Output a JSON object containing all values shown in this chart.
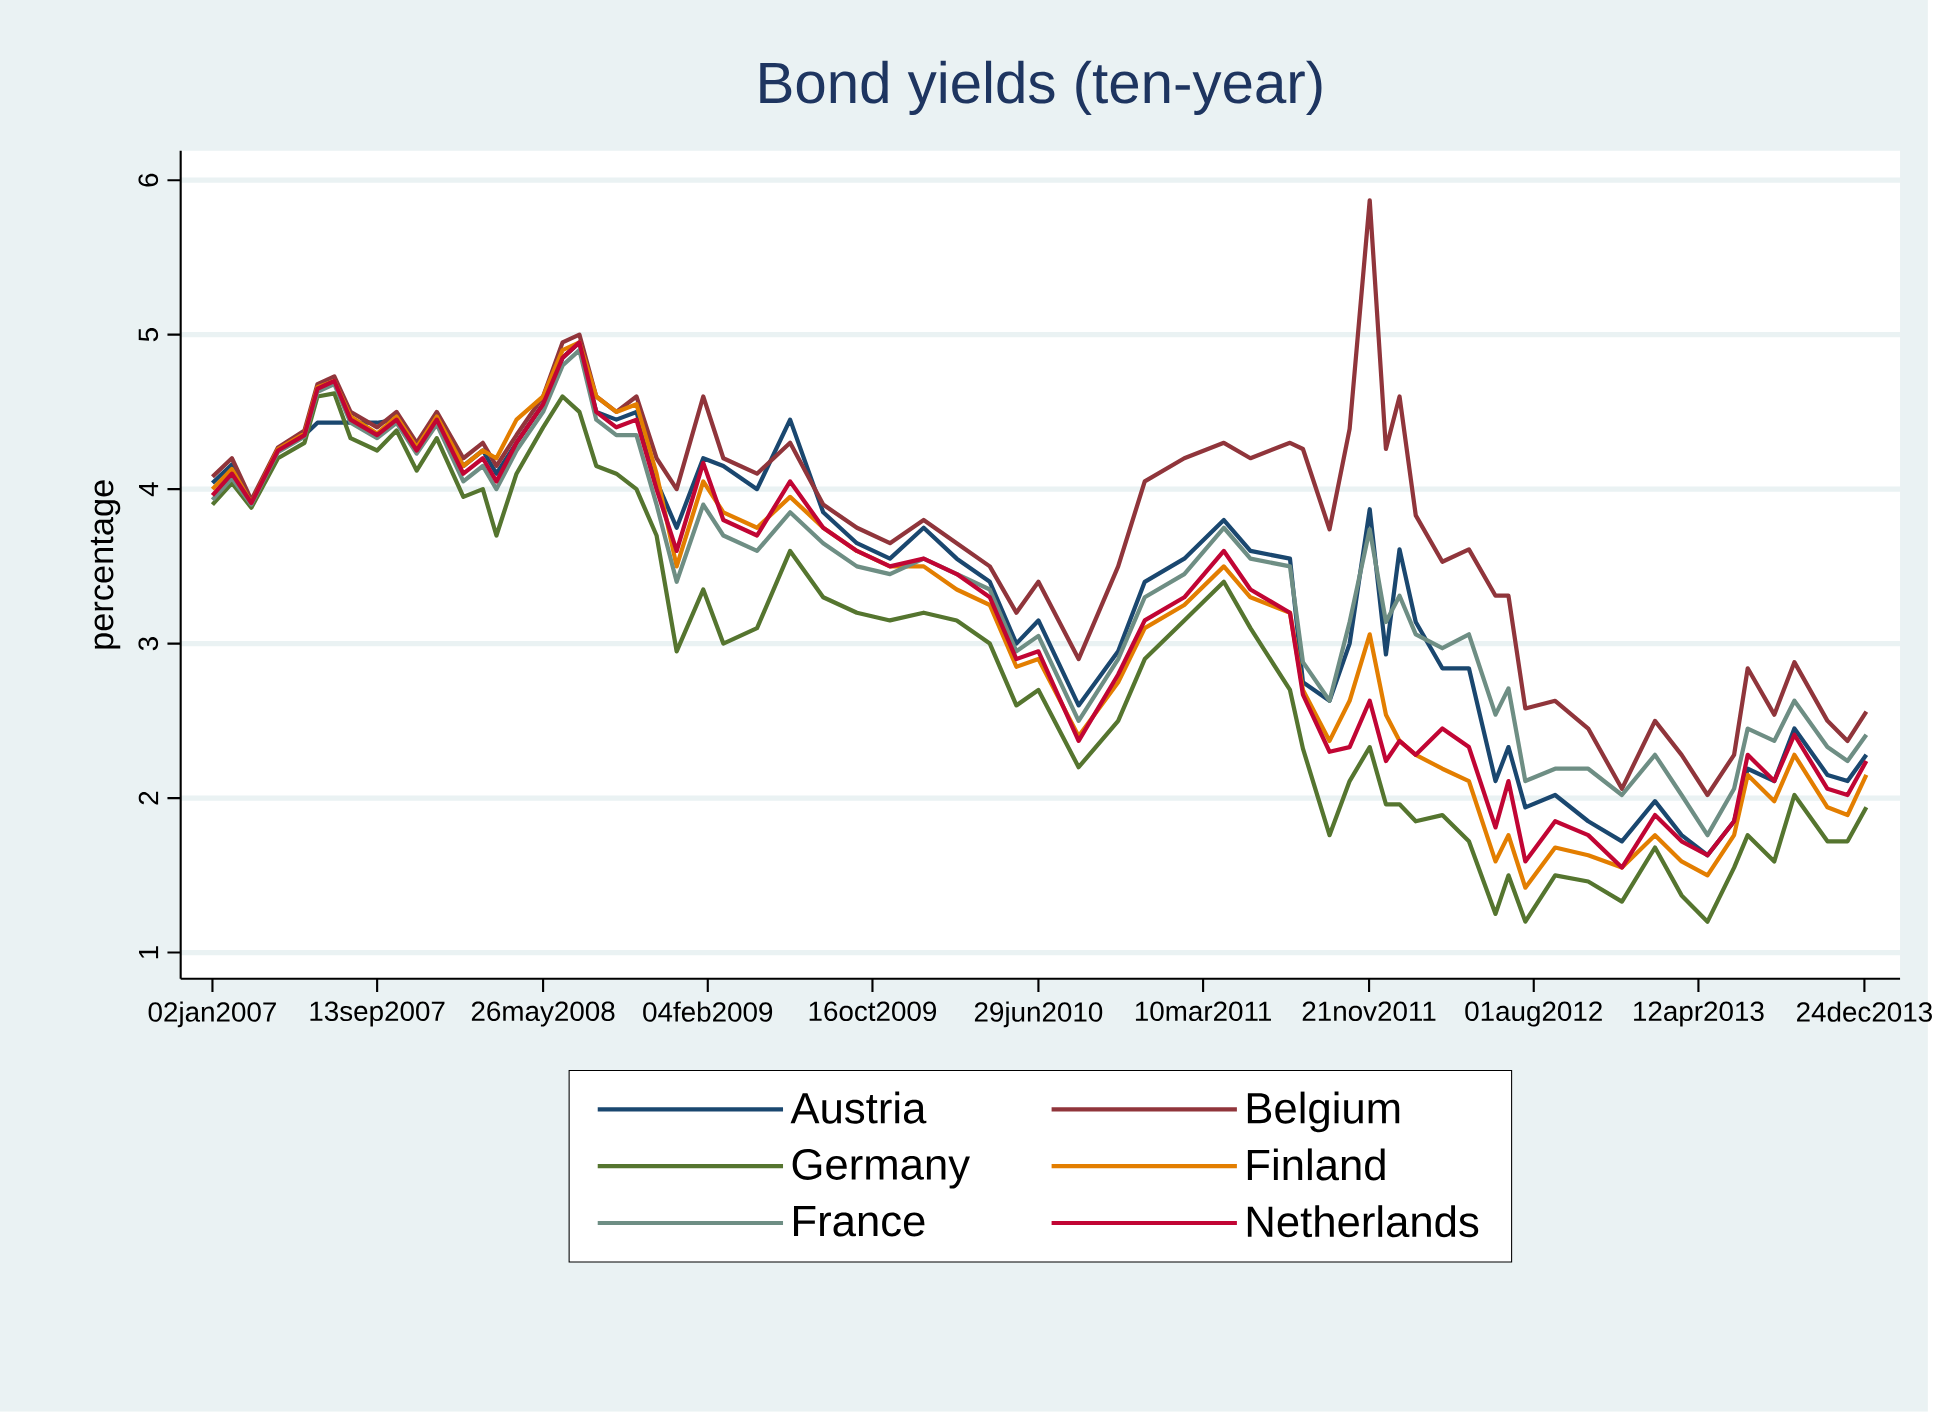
{
  "chart_data": {
    "type": "line",
    "title": "Bond yields (ten-year)",
    "ylabel": "percentage",
    "legend": "bottom",
    "grid": "y",
    "ylim": [
      0.83,
      6.19
    ],
    "yticks": [
      1,
      2,
      3,
      4,
      5,
      6
    ],
    "xlim": [
      "2006-11-14",
      "2014-02-17"
    ],
    "xticks": [
      {
        "value": "2007-01-02",
        "label": "02jan2007"
      },
      {
        "value": "2007-09-13",
        "label": "13sep2007"
      },
      {
        "value": "2008-05-26",
        "label": "26may2008"
      },
      {
        "value": "2009-02-04",
        "label": "04feb2009"
      },
      {
        "value": "2009-10-16",
        "label": "16oct2009"
      },
      {
        "value": "2010-06-29",
        "label": "29jun2010"
      },
      {
        "value": "2011-03-10",
        "label": "10mar2011"
      },
      {
        "value": "2011-11-21",
        "label": "21nov2011"
      },
      {
        "value": "2012-08-01",
        "label": "01aug2012"
      },
      {
        "value": "2013-04-12",
        "label": "12apr2013"
      },
      {
        "value": "2013-12-24",
        "label": "24dec2013"
      }
    ],
    "x": [
      "2007-01-02",
      "2007-02-01",
      "2007-03-03",
      "2007-04-13",
      "2007-05-24",
      "2007-06-13",
      "2007-07-09",
      "2007-08-03",
      "2007-09-13",
      "2007-10-13",
      "2007-11-13",
      "2007-12-14",
      "2008-01-24",
      "2008-02-23",
      "2008-03-15",
      "2008-04-15",
      "2008-05-26",
      "2008-06-25",
      "2008-07-21",
      "2008-08-16",
      "2008-09-16",
      "2008-10-17",
      "2008-11-17",
      "2008-12-18",
      "2009-01-28",
      "2009-02-28",
      "2009-04-21",
      "2009-06-11",
      "2009-08-01",
      "2009-09-22",
      "2009-11-12",
      "2010-01-03",
      "2010-02-23",
      "2010-04-15",
      "2010-05-26",
      "2010-06-29",
      "2010-08-30",
      "2010-10-30",
      "2010-12-10",
      "2011-02-09",
      "2011-04-11",
      "2011-05-22",
      "2011-07-22",
      "2011-08-11",
      "2011-09-21",
      "2011-10-22",
      "2011-11-22",
      "2011-12-17",
      "2012-01-07",
      "2012-02-01",
      "2012-03-13",
      "2012-04-23",
      "2012-06-03",
      "2012-06-23",
      "2012-07-19",
      "2012-09-03",
      "2012-10-24",
      "2012-12-15",
      "2013-02-04",
      "2013-03-17",
      "2013-04-26",
      "2013-06-06",
      "2013-06-27",
      "2013-08-07",
      "2013-09-07",
      "2013-10-28",
      "2013-11-28",
      "2013-12-27"
    ],
    "series": [
      {
        "name": "Austria",
        "color": "#1a476f",
        "values": [
          4.04,
          4.16,
          3.92,
          4.25,
          4.35,
          4.43,
          4.43,
          4.43,
          4.43,
          4.45,
          4.27,
          4.45,
          4.15,
          4.25,
          4.1,
          4.3,
          4.55,
          4.85,
          4.95,
          4.5,
          4.45,
          4.5,
          4.05,
          3.75,
          4.2,
          4.15,
          4.0,
          4.45,
          3.85,
          3.65,
          3.55,
          3.75,
          3.55,
          3.4,
          3.0,
          3.15,
          2.6,
          2.95,
          3.4,
          3.55,
          3.8,
          3.6,
          3.55,
          2.75,
          2.63,
          3.0,
          3.87,
          2.93,
          3.61,
          3.14,
          2.84,
          2.84,
          2.11,
          2.33,
          1.94,
          2.02,
          1.85,
          1.72,
          1.98,
          1.76,
          1.63,
          1.85,
          2.19,
          2.11,
          2.45,
          2.15,
          2.11,
          2.28
        ]
      },
      {
        "name": "Belgium",
        "color": "#90353b",
        "values": [
          4.08,
          4.2,
          3.93,
          4.27,
          4.38,
          4.68,
          4.73,
          4.5,
          4.4,
          4.5,
          4.3,
          4.5,
          4.2,
          4.3,
          4.15,
          4.35,
          4.6,
          4.95,
          5.0,
          4.6,
          4.5,
          4.6,
          4.2,
          4.0,
          4.6,
          4.2,
          4.1,
          4.3,
          3.9,
          3.75,
          3.65,
          3.8,
          3.65,
          3.5,
          3.2,
          3.4,
          2.9,
          3.5,
          4.05,
          4.2,
          4.3,
          4.2,
          4.3,
          4.26,
          3.74,
          4.39,
          5.87,
          4.26,
          4.6,
          3.83,
          3.53,
          3.61,
          3.31,
          3.31,
          2.58,
          2.63,
          2.45,
          2.06,
          2.5,
          2.28,
          2.02,
          2.28,
          2.84,
          2.54,
          2.88,
          2.5,
          2.37,
          2.56
        ]
      },
      {
        "name": "Germany",
        "color": "#55752f",
        "values": [
          3.9,
          4.04,
          3.88,
          4.2,
          4.3,
          4.6,
          4.62,
          4.33,
          4.25,
          4.38,
          4.12,
          4.33,
          3.95,
          4.0,
          3.7,
          4.1,
          4.4,
          4.6,
          4.5,
          4.15,
          4.1,
          4.0,
          3.7,
          2.95,
          3.35,
          3.0,
          3.1,
          3.6,
          3.3,
          3.2,
          3.15,
          3.2,
          3.15,
          3.0,
          2.6,
          2.7,
          2.2,
          2.5,
          2.9,
          3.15,
          3.4,
          3.1,
          2.7,
          2.32,
          1.76,
          2.11,
          2.33,
          1.96,
          1.96,
          1.85,
          1.89,
          1.72,
          1.25,
          1.5,
          1.2,
          1.5,
          1.46,
          1.33,
          1.68,
          1.37,
          1.2,
          1.55,
          1.76,
          1.59,
          2.02,
          1.72,
          1.72,
          1.94
        ]
      },
      {
        "name": "Finland",
        "color": "#e37e00",
        "values": [
          4.0,
          4.13,
          3.91,
          4.26,
          4.36,
          4.66,
          4.7,
          4.47,
          4.36,
          4.47,
          4.27,
          4.47,
          4.15,
          4.25,
          4.2,
          4.45,
          4.6,
          4.9,
          4.95,
          4.6,
          4.5,
          4.55,
          4.1,
          3.5,
          4.05,
          3.85,
          3.75,
          3.95,
          3.75,
          3.6,
          3.5,
          3.5,
          3.35,
          3.25,
          2.85,
          2.9,
          2.4,
          2.75,
          3.1,
          3.25,
          3.5,
          3.3,
          3.2,
          2.7,
          2.37,
          2.63,
          3.06,
          2.54,
          2.37,
          2.28,
          2.19,
          2.11,
          1.59,
          1.76,
          1.42,
          1.68,
          1.63,
          1.55,
          1.76,
          1.59,
          1.5,
          1.76,
          2.15,
          1.98,
          2.28,
          1.94,
          1.89,
          2.15
        ]
      },
      {
        "name": "France",
        "color": "#6e8e84",
        "values": [
          3.93,
          4.07,
          3.9,
          4.24,
          4.34,
          4.63,
          4.68,
          4.43,
          4.33,
          4.43,
          4.23,
          4.42,
          4.05,
          4.15,
          4.0,
          4.25,
          4.5,
          4.8,
          4.9,
          4.45,
          4.35,
          4.35,
          3.9,
          3.4,
          3.9,
          3.7,
          3.6,
          3.85,
          3.65,
          3.5,
          3.45,
          3.55,
          3.45,
          3.35,
          2.95,
          3.05,
          2.5,
          2.9,
          3.3,
          3.45,
          3.75,
          3.55,
          3.5,
          2.88,
          2.63,
          3.14,
          3.74,
          3.14,
          3.31,
          3.06,
          2.97,
          3.06,
          2.54,
          2.71,
          2.11,
          2.19,
          2.19,
          2.02,
          2.28,
          2.02,
          1.76,
          2.06,
          2.45,
          2.37,
          2.63,
          2.33,
          2.24,
          2.41
        ]
      },
      {
        "name": "Netherlands",
        "color": "#c10534",
        "values": [
          3.96,
          4.1,
          3.91,
          4.25,
          4.35,
          4.65,
          4.7,
          4.45,
          4.35,
          4.45,
          4.25,
          4.45,
          4.1,
          4.2,
          4.05,
          4.3,
          4.55,
          4.85,
          4.95,
          4.5,
          4.4,
          4.45,
          4.0,
          3.6,
          4.17,
          3.8,
          3.7,
          4.05,
          3.75,
          3.6,
          3.5,
          3.55,
          3.45,
          3.3,
          2.9,
          2.95,
          2.37,
          2.8,
          3.15,
          3.3,
          3.6,
          3.35,
          3.2,
          2.67,
          2.3,
          2.33,
          2.63,
          2.24,
          2.37,
          2.28,
          2.45,
          2.33,
          1.81,
          2.11,
          1.59,
          1.85,
          1.76,
          1.55,
          1.89,
          1.72,
          1.63,
          1.85,
          2.28,
          2.11,
          2.41,
          2.06,
          2.02,
          2.24
        ]
      }
    ]
  }
}
